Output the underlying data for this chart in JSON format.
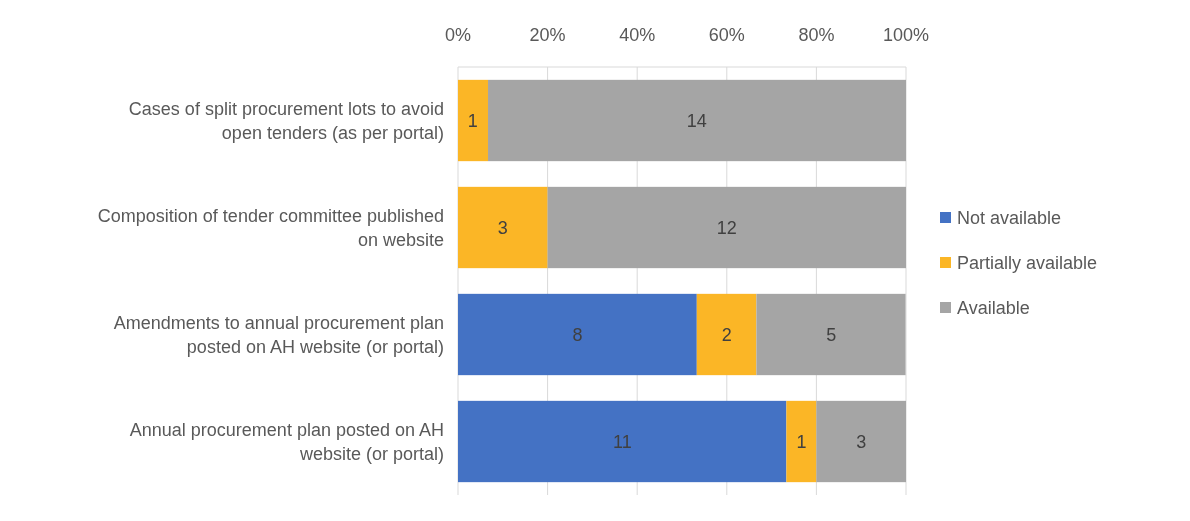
{
  "chart_data": {
    "type": "bar",
    "orientation": "horizontal",
    "stacked": true,
    "categories": [
      "Cases of split procurement lots to avoid open tenders (as per portal)",
      "Composition of tender committee published on website",
      "Amendments to annual procurement plan posted on AH website (or portal)",
      "Annual procurement plan posted on AH website (or portal)"
    ],
    "series": [
      {
        "name": "Not available",
        "color": "#4472c4",
        "values": [
          0,
          0,
          53.3,
          73.3
        ]
      },
      {
        "name": "Partially available",
        "color": "#fbb626",
        "values": [
          6.7,
          20,
          13.3,
          6.7
        ]
      },
      {
        "name": "Available",
        "color": "#a5a5a5",
        "values": [
          93.3,
          80,
          33.3,
          20
        ]
      }
    ],
    "annotations": [
      {
        "text": "1",
        "x": 3.3,
        "y": "Cases of split procurement lots to avoid open tenders (as per portal)"
      },
      {
        "text": "14",
        "x": 53.3,
        "y": "Cases of split procurement lots to avoid open tenders (as per portal)"
      },
      {
        "text": "3",
        "x": 10,
        "y": "Composition of tender committee published on website"
      },
      {
        "text": "12",
        "x": 60,
        "y": "Composition of tender committee published on website"
      },
      {
        "text": "8",
        "x": 26.7,
        "y": "Amendments to annual procurement plan posted on AH website (or portal)"
      },
      {
        "text": "2",
        "x": 60,
        "y": "Amendments to annual procurement plan posted on AH website (or portal)"
      },
      {
        "text": "5",
        "x": 83.3,
        "y": "Amendments to annual procurement plan posted on AH website (or portal)"
      },
      {
        "text": "11",
        "x": 36.7,
        "y": "Annual procurement plan posted on AH website (or portal)"
      },
      {
        "text": "1",
        "x": 76.7,
        "y": "Annual procurement plan posted on AH website (or portal)"
      },
      {
        "text": "3",
        "x": 90,
        "y": "Annual procurement plan posted on AH website (or portal)"
      }
    ],
    "xlim": [
      0,
      100
    ],
    "xticks": [
      {
        "value": 0,
        "label": "0%"
      },
      {
        "value": 20,
        "label": "20%"
      },
      {
        "value": 40,
        "label": "40%"
      },
      {
        "value": 60,
        "label": "60%"
      },
      {
        "value": 80,
        "label": "80%"
      },
      {
        "value": 100,
        "label": "100%"
      }
    ],
    "grid": "x",
    "legend": "right"
  }
}
